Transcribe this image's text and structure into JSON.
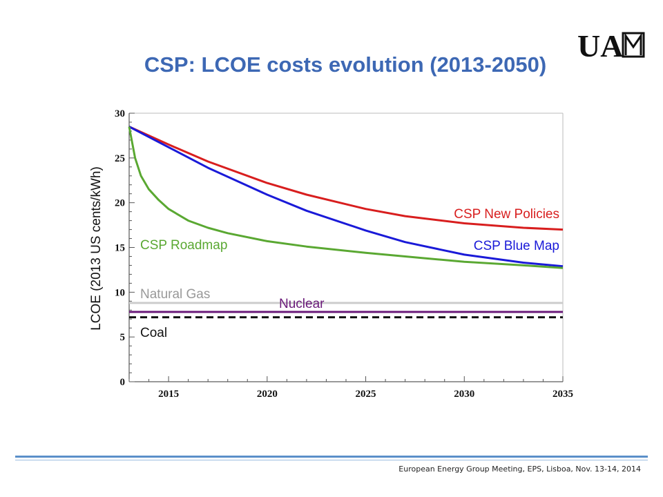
{
  "slide": {
    "title": "CSP: LCOE costs evolution (2013-2050)",
    "footer": "European Energy Group Meeting, EPS, Lisboa, Nov. 13-14, 2014",
    "logo_text": "UAM"
  },
  "chart_data": {
    "type": "line",
    "ylabel": "LCOE (2013 US cents/kWh)",
    "xlim": [
      2013,
      2035
    ],
    "ylim": [
      0,
      30
    ],
    "xticks": [
      2015,
      2020,
      2025,
      2030,
      2035
    ],
    "yticks": [
      0,
      5,
      10,
      15,
      20,
      25,
      30
    ],
    "grid": false,
    "series": [
      {
        "name": "CSP New Policies",
        "color": "#d81e1e",
        "x": [
          2013,
          2015,
          2017,
          2020,
          2022,
          2025,
          2027,
          2030,
          2033,
          2035
        ],
        "y": [
          28.5,
          26.5,
          24.6,
          22.2,
          20.9,
          19.3,
          18.5,
          17.7,
          17.2,
          17.0
        ]
      },
      {
        "name": "CSP Blue Map",
        "color": "#1a1ad8",
        "x": [
          2013,
          2015,
          2017,
          2020,
          2022,
          2025,
          2027,
          2030,
          2033,
          2035
        ],
        "y": [
          28.5,
          26.2,
          23.9,
          20.9,
          19.1,
          16.9,
          15.6,
          14.2,
          13.3,
          12.9
        ]
      },
      {
        "name": "CSP Roadmap",
        "color": "#5aa832",
        "x": [
          2013,
          2013.3,
          2013.6,
          2014,
          2014.5,
          2015,
          2016,
          2017,
          2018,
          2020,
          2022,
          2025,
          2028,
          2030,
          2033,
          2035
        ],
        "y": [
          28.5,
          25.0,
          23.0,
          21.5,
          20.3,
          19.3,
          18.0,
          17.2,
          16.6,
          15.7,
          15.1,
          14.4,
          13.8,
          13.4,
          13.0,
          12.7
        ]
      },
      {
        "name": "Natural Gas",
        "color": "#cccccc",
        "x": [
          2013,
          2035
        ],
        "y": [
          8.8,
          8.8
        ]
      },
      {
        "name": "Nuclear",
        "color": "#6a1a7a",
        "x": [
          2013,
          2035
        ],
        "y": [
          7.8,
          7.8
        ]
      },
      {
        "name": "Coal",
        "color": "#111111",
        "dashed": true,
        "x": [
          2013,
          2035
        ],
        "y": [
          7.2,
          7.2
        ]
      }
    ],
    "annotations": [
      {
        "series": "CSP New Policies",
        "text": "CSP New Policies"
      },
      {
        "series": "CSP Blue Map",
        "text": "CSP Blue Map"
      },
      {
        "series": "CSP Roadmap",
        "text": "CSP Roadmap"
      },
      {
        "series": "Natural Gas",
        "text": "Natural Gas"
      },
      {
        "series": "Nuclear",
        "text": "Nuclear"
      },
      {
        "series": "Coal",
        "text": "Coal"
      }
    ]
  }
}
